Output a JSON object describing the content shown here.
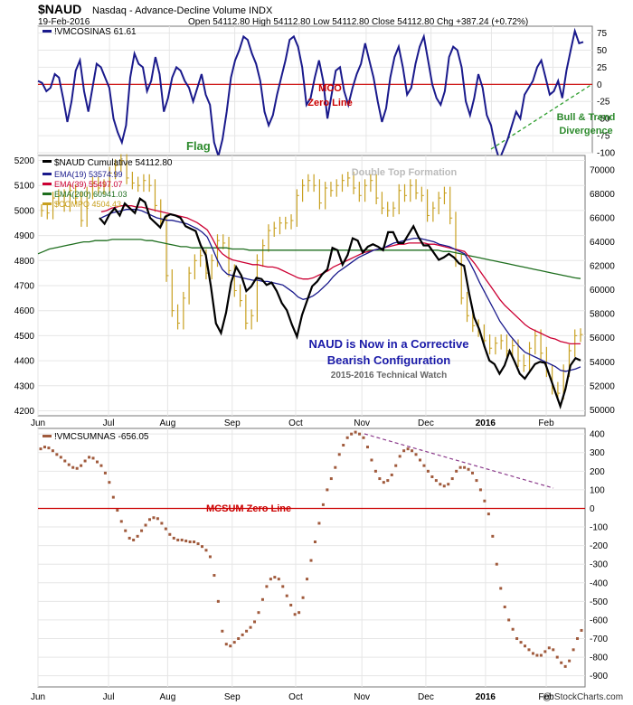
{
  "header": {
    "symbol": "$NAUD",
    "description": "Nasdaq - Advance-Decline Volume INDX",
    "date": "19-Feb-2016",
    "ohlc": "Open 54112.80  High 54112.80  Low 54112.80  Close 54112.80  Chg +387.24 (+0.72%)",
    "source": "@ StockCharts.com"
  },
  "chart_data": [
    {
      "type": "line",
      "legend": "!VMCOSINAS 61.61",
      "ylim": [
        -100,
        85
      ],
      "yticks": [
        75,
        50,
        25,
        0,
        -25,
        -50,
        -75,
        -100
      ],
      "zero_line_label": "MCO\nZero Line",
      "annotations": [
        "Flag",
        "Bull & Trend",
        "Divergence"
      ],
      "colors": {
        "line": "#1a1a8c",
        "zero": "#cc0000",
        "divergence": "#2e9e2e",
        "text_red": "#cc0000",
        "text_green": "#2e8b2e"
      },
      "series": [
        {
          "name": "!VMCOSINAS",
          "values": [
            5,
            2,
            -10,
            -5,
            15,
            10,
            -20,
            -55,
            -25,
            20,
            35,
            -10,
            -40,
            -5,
            30,
            25,
            10,
            -5,
            -50,
            -70,
            -85,
            -60,
            10,
            45,
            30,
            25,
            -10,
            5,
            40,
            15,
            -40,
            -20,
            10,
            25,
            20,
            5,
            -5,
            -25,
            -5,
            15,
            -15,
            -30,
            -85,
            -105,
            -80,
            -40,
            10,
            35,
            50,
            70,
            65,
            45,
            30,
            5,
            -40,
            -60,
            -45,
            -15,
            10,
            35,
            65,
            70,
            55,
            25,
            -30,
            -20,
            10,
            35,
            5,
            -50,
            -15,
            20,
            25,
            -10,
            -30,
            -5,
            15,
            30,
            60,
            35,
            10,
            -25,
            -55,
            -35,
            10,
            40,
            55,
            25,
            -15,
            -5,
            30,
            55,
            70,
            35,
            0,
            -20,
            -30,
            -10,
            40,
            55,
            50,
            25,
            -25,
            -45,
            -20,
            15,
            -5,
            -45,
            -60,
            -90,
            -110,
            -95,
            -80,
            -60,
            -40,
            -50,
            -15,
            -5,
            5,
            25,
            35,
            10,
            -15,
            -10,
            5,
            -20,
            20,
            50,
            78,
            60,
            62
          ]
        }
      ]
    },
    {
      "type": "line",
      "legend": [
        "$NAUD Cumulative 54112.80",
        "EMA(19) 53574.99",
        "EMA(39) 55497.07",
        "EMA(200) 60941.03",
        "$COMPQ 4504.43"
      ],
      "left_axis": {
        "ticks": [
          5200,
          5100,
          5000,
          4900,
          4800,
          4700,
          4600,
          4500,
          4400,
          4300,
          4200
        ],
        "range": [
          4180,
          5220
        ]
      },
      "right_axis": {
        "ticks": [
          70000,
          68000,
          66000,
          64000,
          62000,
          60000,
          58000,
          56000,
          54000,
          52000,
          50000
        ],
        "range": [
          49500,
          71200
        ]
      },
      "x_labels": [
        "Jun",
        "Jul",
        "Aug",
        "Sep",
        "Oct",
        "Nov",
        "Dec",
        "2016",
        "Feb"
      ],
      "annotations": [
        "Double Top Formation",
        "NAUD is Now in a Corrective",
        "Bearish Configuration",
        "2015-2016 Technical Watch"
      ],
      "colors": {
        "naud": "#000000",
        "ema19": "#1a1a8c",
        "ema39": "#cc0033",
        "ema200": "#1e6e1e",
        "compq": "#c8a020",
        "note_blue": "#1a1aa8",
        "note_gray": "#999999",
        "note_small": "#666666"
      },
      "series": [
        {
          "name": "$NAUD Cumulative",
          "values": [
            66000,
            65500,
            66300,
            66800,
            66200,
            67200,
            66800,
            66400,
            67600,
            67300,
            66000,
            65600,
            65200,
            66100,
            66300,
            66200,
            66000,
            65300,
            65100,
            64900,
            63700,
            62900,
            60300,
            57200,
            56400,
            58100,
            60600,
            61900,
            61200,
            59900,
            60300,
            61000,
            60900,
            60400,
            60600,
            59900,
            58900,
            58300,
            57100,
            56100,
            57900,
            59100,
            60300,
            60700,
            61300,
            61700,
            63500,
            63300,
            62100,
            62900,
            64300,
            64100,
            63100,
            63600,
            63800,
            63600,
            63300,
            64800,
            64800,
            63900,
            63900,
            64600,
            65300,
            64400,
            63700,
            63700,
            63100,
            62500,
            62700,
            63000,
            62700,
            62200,
            62000,
            59700,
            57700,
            56700,
            55300,
            54100,
            53800,
            53000,
            53700,
            54900,
            54000,
            53000,
            52600,
            53200,
            53800,
            54000,
            53900,
            52700,
            51500,
            50300,
            51700,
            53700,
            54300,
            54112.8
          ]
        },
        {
          "name": "EMA(19)",
          "values": [
            66000,
            66200,
            66400,
            66500,
            66600,
            66700,
            66700,
            66700,
            66600,
            66400,
            66200,
            66000,
            65900,
            65800,
            65800,
            65700,
            65600,
            65500,
            65300,
            65100,
            64800,
            64400,
            63500,
            62500,
            61700,
            61300,
            61200,
            61100,
            61000,
            60900,
            60800,
            60800,
            60700,
            60700,
            60600,
            60500,
            60400,
            60100,
            59800,
            59400,
            59200,
            59300,
            59500,
            59800,
            60200,
            60600,
            61100,
            61500,
            61800,
            62100,
            62400,
            62700,
            62900,
            63100,
            63300,
            63400,
            63500,
            63700,
            63900,
            64000,
            64100,
            64200,
            64300,
            64300,
            64200,
            64100,
            64000,
            63800,
            63700,
            63600,
            63400,
            63200,
            63000,
            62300,
            61500,
            60600,
            59800,
            59000,
            58200,
            57400,
            56800,
            56200,
            55700,
            55200,
            54800,
            54600,
            54400,
            54200,
            54000,
            53800,
            53600,
            53300,
            53200,
            53300,
            53400,
            53574.99
          ]
        },
        {
          "name": "EMA(39)",
          "values": [
            66500,
            66600,
            66800,
            66900,
            67000,
            67000,
            67000,
            66900,
            66900,
            66800,
            66700,
            66600,
            66500,
            66400,
            66300,
            66200,
            66100,
            66000,
            65800,
            65600,
            65300,
            65000,
            64300,
            63500,
            63000,
            62700,
            62500,
            62400,
            62300,
            62200,
            62100,
            62100,
            62000,
            61900,
            61900,
            61800,
            61600,
            61400,
            61200,
            61000,
            60900,
            60900,
            61000,
            61200,
            61400,
            61600,
            61900,
            62100,
            62300,
            62500,
            62700,
            62900,
            63100,
            63200,
            63300,
            63400,
            63500,
            63600,
            63700,
            63800,
            63800,
            63900,
            63900,
            63900,
            63900,
            63800,
            63800,
            63700,
            63600,
            63500,
            63400,
            63300,
            63200,
            62700,
            62200,
            61600,
            61000,
            60400,
            59800,
            59200,
            58700,
            58300,
            57900,
            57500,
            57100,
            56800,
            56600,
            56400,
            56200,
            56000,
            55900,
            55700,
            55600,
            55500,
            55500,
            55497.07
          ]
        },
        {
          "name": "EMA(200)",
          "values": [
            63000,
            63200,
            63400,
            63500,
            63600,
            63700,
            63800,
            63900,
            64000,
            64000,
            64100,
            64100,
            64100,
            64200,
            64200,
            64200,
            64200,
            64200,
            64200,
            64100,
            64100,
            64000,
            63900,
            63800,
            63700,
            63600,
            63600,
            63500,
            63500,
            63500,
            63500,
            63500,
            63500,
            63500,
            63400,
            63400,
            63400,
            63300,
            63300,
            63300,
            63300,
            63300,
            63300,
            63300,
            63300,
            63300,
            63300,
            63300,
            63300,
            63300,
            63300,
            63300,
            63300,
            63300,
            63300,
            63300,
            63300,
            63300,
            63300,
            63300,
            63300,
            63300,
            63300,
            63300,
            63300,
            63300,
            63300,
            63300,
            63300,
            63300,
            63300,
            63200,
            63200,
            63100,
            63000,
            62900,
            62800,
            62700,
            62600,
            62500,
            62400,
            62300,
            62200,
            62100,
            62000,
            61900,
            61800,
            61700,
            61600,
            61500,
            61400,
            61300,
            61200,
            61100,
            61000,
            60941.03
          ]
        },
        {
          "name": "$COMPQ",
          "values": [
            5000,
            4990,
            5050,
            5060,
            5020,
            5080,
            5050,
            4960,
            5070,
            5110,
            5090,
            5100,
            5150,
            5180,
            5200,
            5130,
            5110,
            5100,
            5120,
            5100,
            5020,
            4960,
            4740,
            4600,
            4550,
            4650,
            4750,
            4800,
            4820,
            4750,
            4800,
            4880,
            4870,
            4760,
            4680,
            4640,
            4550,
            4580,
            4800,
            4860,
            4920,
            4930,
            4950,
            4950,
            4960,
            5060,
            5100,
            5120,
            5100,
            5030,
            5090,
            5080,
            5100,
            5120,
            5130,
            5090,
            5060,
            5100,
            5120,
            5050,
            5010,
            5000,
            5010,
            5080,
            5060,
            5100,
            5070,
            5060,
            4980,
            5010,
            5050,
            5070,
            4970,
            4800,
            4650,
            4580,
            4540,
            4520,
            4480,
            4450,
            4470,
            4480,
            4440,
            4460,
            4400,
            4380,
            4450,
            4500,
            4430,
            4360,
            4290,
            4270,
            4360,
            4440,
            4500,
            4504.43
          ]
        }
      ]
    },
    {
      "type": "scatter",
      "legend": "!VMCSUMNAS -656.05",
      "ylim": [
        -960,
        430
      ],
      "yticks": [
        400,
        300,
        200,
        100,
        0,
        -100,
        -200,
        -300,
        -400,
        -500,
        -600,
        -700,
        -800,
        -900
      ],
      "x_labels": [
        "Jun",
        "Jul",
        "Aug",
        "Sep",
        "Oct",
        "Nov",
        "Dec",
        "2016",
        "Feb"
      ],
      "zero_line_label": "MCSUM Zero Line",
      "colors": {
        "dots": "#a05a3c",
        "zero": "#cc0000",
        "trend": "#8b3a8b"
      },
      "series": [
        {
          "name": "!VMCSUMNAS",
          "values": [
            320,
            330,
            325,
            310,
            290,
            275,
            255,
            235,
            220,
            215,
            230,
            255,
            275,
            270,
            250,
            230,
            190,
            140,
            60,
            -10,
            -70,
            -120,
            -160,
            -170,
            -150,
            -120,
            -90,
            -60,
            -50,
            -55,
            -80,
            -110,
            -140,
            -160,
            -170,
            -170,
            -175,
            -180,
            -180,
            -190,
            -205,
            -225,
            -260,
            -360,
            -500,
            -660,
            -730,
            -740,
            -720,
            -700,
            -680,
            -660,
            -640,
            -610,
            -560,
            -490,
            -420,
            -380,
            -370,
            -380,
            -420,
            -470,
            -520,
            -570,
            -560,
            -480,
            -380,
            -280,
            -180,
            -80,
            20,
            100,
            160,
            220,
            290,
            340,
            380,
            400,
            410,
            400,
            380,
            330,
            260,
            200,
            160,
            140,
            150,
            180,
            230,
            280,
            310,
            320,
            310,
            290,
            260,
            230,
            200,
            170,
            150,
            130,
            120,
            130,
            160,
            200,
            220,
            220,
            210,
            190,
            150,
            100,
            40,
            -30,
            -150,
            -300,
            -430,
            -530,
            -600,
            -650,
            -700,
            -720,
            -740,
            -760,
            -780,
            -790,
            -790,
            -770,
            -750,
            -760,
            -800,
            -830,
            -850,
            -820,
            -760,
            -700,
            -656.05
          ]
        }
      ]
    }
  ]
}
